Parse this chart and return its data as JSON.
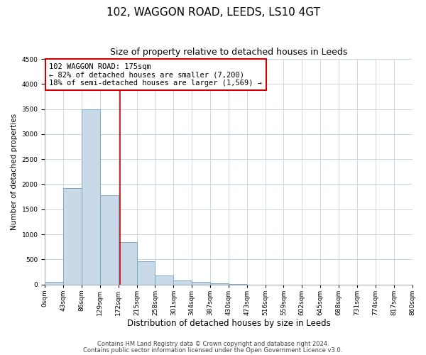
{
  "title": "102, WAGGON ROAD, LEEDS, LS10 4GT",
  "subtitle": "Size of property relative to detached houses in Leeds",
  "xlabel": "Distribution of detached houses by size in Leeds",
  "ylabel": "Number of detached properties",
  "bin_edges": [
    0,
    43,
    86,
    129,
    172,
    215,
    258,
    301,
    344,
    387,
    430,
    473,
    516,
    559,
    602,
    645,
    688,
    731,
    774,
    817,
    860
  ],
  "bar_heights": [
    45,
    1920,
    3490,
    1780,
    850,
    460,
    175,
    85,
    50,
    30,
    15,
    0,
    0,
    0,
    0,
    0,
    0,
    0,
    0,
    0
  ],
  "bar_color": "#c9d9e8",
  "bar_edge_color": "#7aaac8",
  "vline_x": 175,
  "vline_color": "#cc0000",
  "annotation_text": "102 WAGGON ROAD: 175sqm\n← 82% of detached houses are smaller (7,200)\n18% of semi-detached houses are larger (1,569) →",
  "annotation_box_color": "#ffffff",
  "annotation_box_edge": "#cc0000",
  "ylim": [
    0,
    4500
  ],
  "yticks": [
    0,
    500,
    1000,
    1500,
    2000,
    2500,
    3000,
    3500,
    4000,
    4500
  ],
  "tick_labels": [
    "0sqm",
    "43sqm",
    "86sqm",
    "129sqm",
    "172sqm",
    "215sqm",
    "258sqm",
    "301sqm",
    "344sqm",
    "387sqm",
    "430sqm",
    "473sqm",
    "516sqm",
    "559sqm",
    "602sqm",
    "645sqm",
    "688sqm",
    "731sqm",
    "774sqm",
    "817sqm",
    "860sqm"
  ],
  "footnote1": "Contains HM Land Registry data © Crown copyright and database right 2024.",
  "footnote2": "Contains public sector information licensed under the Open Government Licence v3.0.",
  "bg_color": "#ffffff",
  "grid_color": "#c0d0e0",
  "title_fontsize": 11,
  "subtitle_fontsize": 9,
  "xlabel_fontsize": 8.5,
  "ylabel_fontsize": 7.5,
  "tick_fontsize": 6.5,
  "annot_fontsize": 7.5,
  "footnote_fontsize": 6
}
